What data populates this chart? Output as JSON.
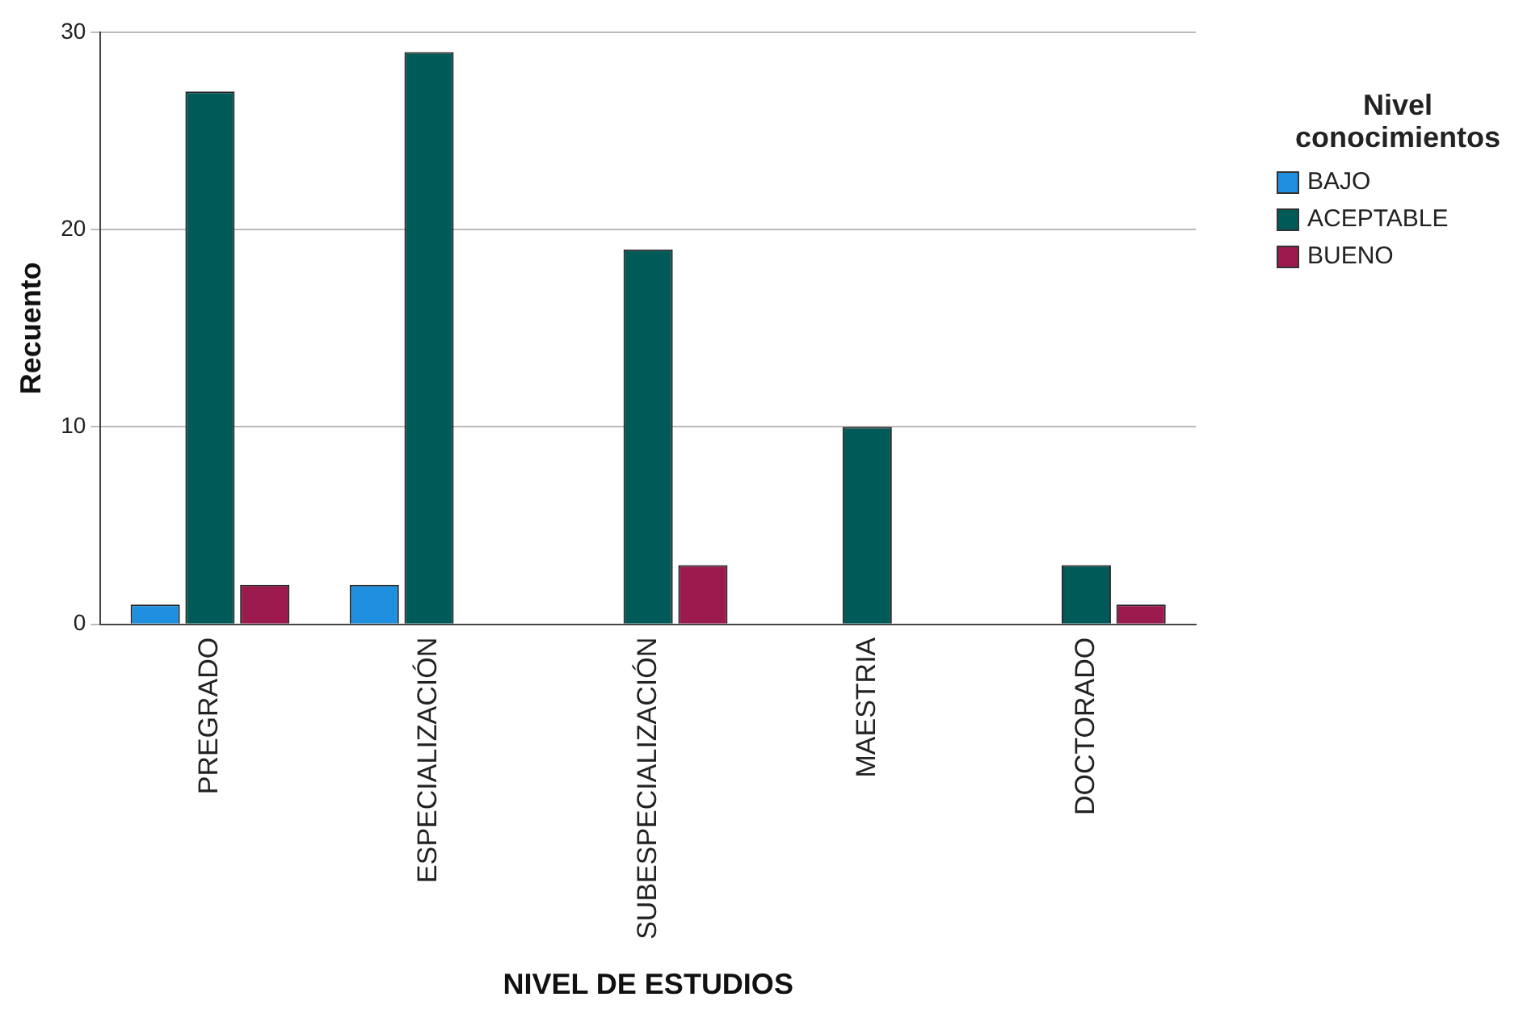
{
  "chart_data": {
    "type": "bar",
    "xlabel": "NIVEL DE ESTUDIOS",
    "ylabel": "Recuento",
    "legend_title": "Nivel conocimientos",
    "categories": [
      "PREGRADO",
      "ESPECIALIZACIÓN",
      "SUBESPECIALIZACIÓN",
      "MAESTRIA",
      "DOCTORADO"
    ],
    "series": [
      {
        "name": "BAJO",
        "color": "#1f8fe0",
        "values": [
          1,
          2,
          null,
          null,
          null
        ]
      },
      {
        "name": "ACEPTABLE",
        "color": "#005a58",
        "values": [
          27,
          29,
          19,
          10,
          3
        ]
      },
      {
        "name": "BUENO",
        "color": "#9c1a4e",
        "values": [
          2,
          null,
          3,
          null,
          1
        ]
      }
    ],
    "ylim": [
      0,
      30
    ],
    "yticks": [
      0,
      10,
      20,
      30
    ],
    "grid": "y",
    "legend": "right"
  }
}
